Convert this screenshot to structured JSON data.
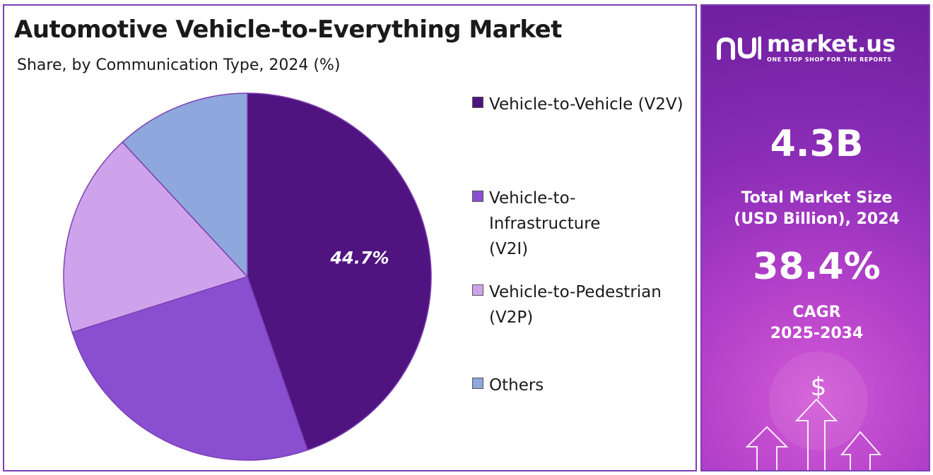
{
  "title": "Automotive Vehicle-to-Everything Market",
  "subtitle": "Share, by Communication Type, 2024 (%)",
  "chart_data": {
    "type": "pie",
    "categories": [
      "Vehicle-to-Vehicle (V2V)",
      "Vehicle-to-Infrastructure (V2I)",
      "Vehicle-to-Pedestrian (V2P)",
      "Others"
    ],
    "values": [
      44.7,
      25.4,
      18.0,
      11.9
    ],
    "colors": [
      "#4f1480",
      "#8a4fd0",
      "#cfa3ec",
      "#8ea7dc"
    ],
    "data_labels": [
      "44.7%",
      "",
      "",
      ""
    ],
    "legend_placement": "right"
  },
  "legend": [
    {
      "label": "Vehicle-to-Vehicle (V2V)",
      "color": "#4f1480"
    },
    {
      "label": "Vehicle-to-Infrastructure (V2I)",
      "color": "#8a4fd0"
    },
    {
      "label": "Vehicle-to-Pedestrian (V2P)",
      "color": "#cfa3ec"
    },
    {
      "label": "Others",
      "color": "#8ea7dc"
    }
  ],
  "brand": {
    "name": "market.us",
    "tagline": "ONE STOP SHOP FOR THE REPORTS",
    "logo_icon": "market-us-logo-icon"
  },
  "stats": {
    "market_size_value": "4.3B",
    "market_size_label_1": "Total Market Size",
    "market_size_label_2": "(USD Billion), 2024",
    "cagr_value": "38.4%",
    "cagr_label_1": "CAGR",
    "cagr_label_2": "2025-2034"
  },
  "decor": {
    "dollar_symbol": "$",
    "icons": [
      "dollar-coin-icon",
      "up-arrow-icon"
    ]
  }
}
